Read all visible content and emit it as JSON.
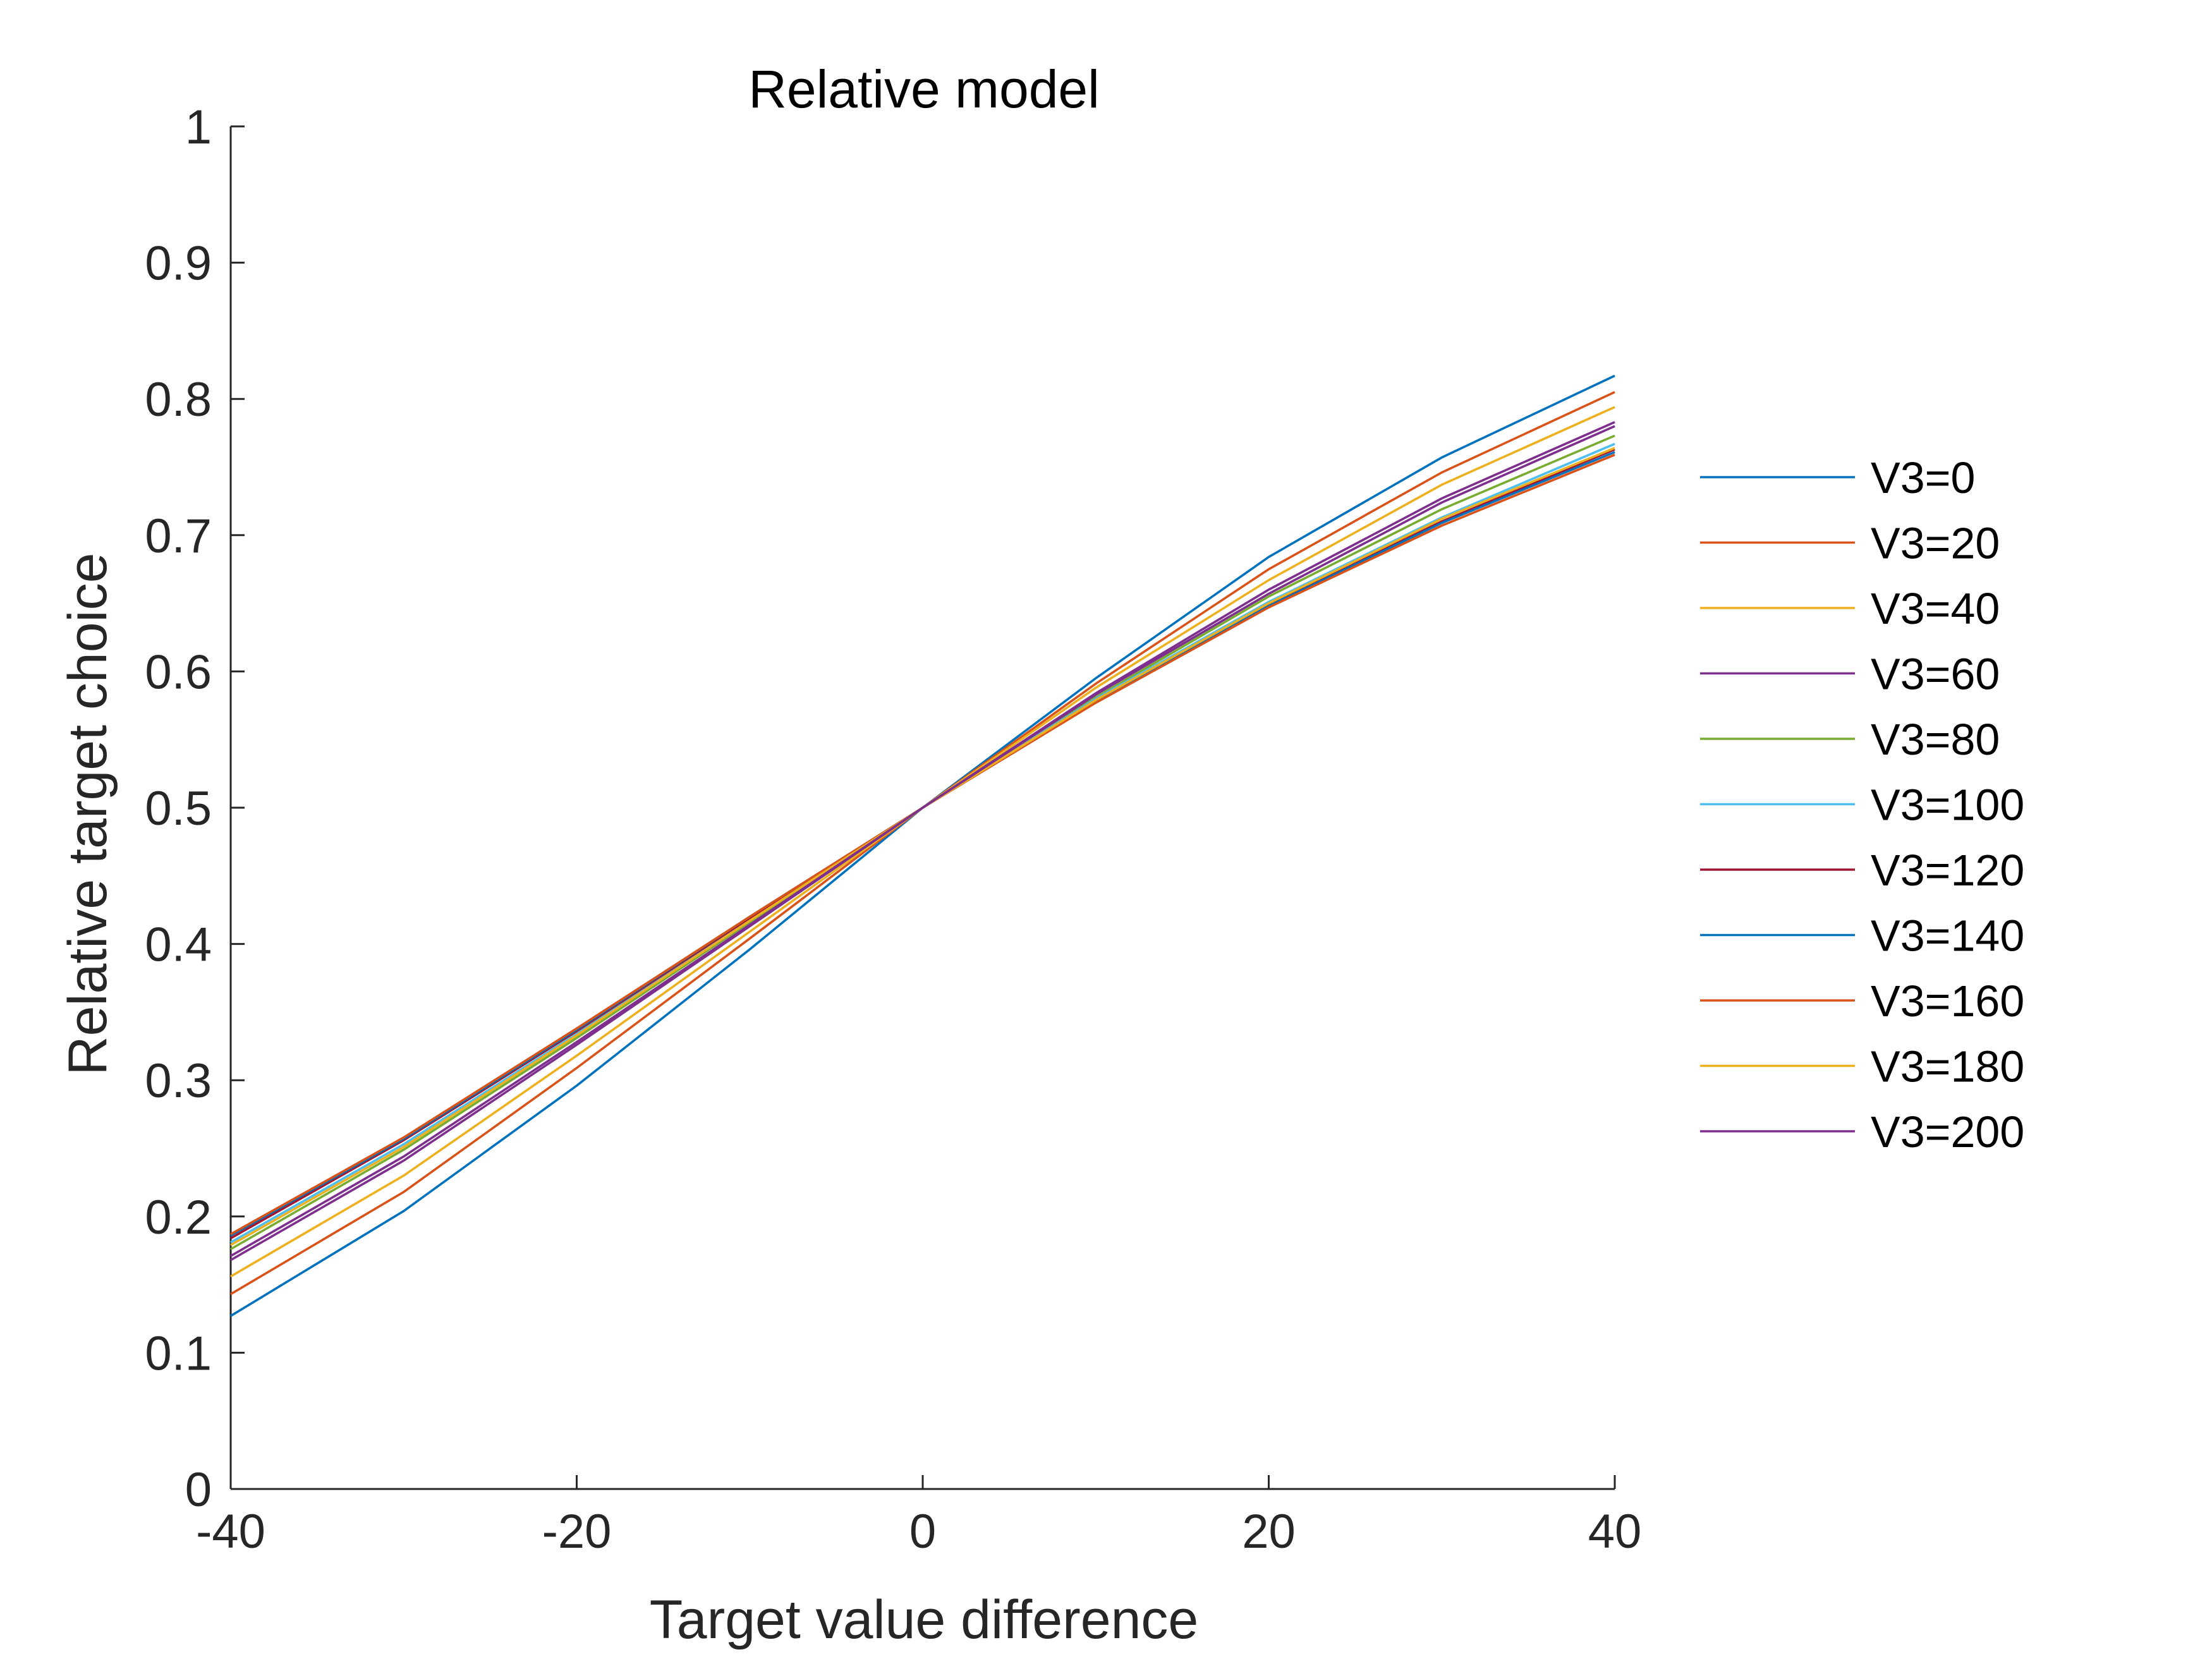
{
  "chart_data": {
    "type": "line",
    "title": "Relative model",
    "xlabel": "Target value difference",
    "ylabel": "Relative target choice",
    "xlim": [
      -40,
      40
    ],
    "ylim": [
      0,
      1
    ],
    "xticks": [
      -40,
      -20,
      0,
      20,
      40
    ],
    "xtick_labels": [
      "-40",
      "-20",
      "0",
      "20",
      "40"
    ],
    "yticks": [
      0,
      0.1,
      0.2,
      0.3,
      0.4,
      0.5,
      0.6,
      0.7,
      0.8,
      0.9,
      1
    ],
    "ytick_labels": [
      "0",
      "0.1",
      "0.2",
      "0.3",
      "0.4",
      "0.5",
      "0.6",
      "0.7",
      "0.8",
      "0.9",
      "1"
    ],
    "grid": false,
    "legend_position": "right",
    "x": [
      -40,
      -30,
      -20,
      -10,
      0,
      10,
      20,
      30,
      40
    ],
    "series": [
      {
        "name": "V3=0",
        "color": "#0072BD",
        "values": [
          0.127,
          0.204,
          0.296,
          0.396,
          0.5,
          0.595,
          0.684,
          0.757,
          0.817
        ]
      },
      {
        "name": "V3=20",
        "color": "#D95319",
        "values": [
          0.143,
          0.218,
          0.309,
          0.404,
          0.5,
          0.591,
          0.675,
          0.746,
          0.805
        ]
      },
      {
        "name": "V3=40",
        "color": "#EDB120",
        "values": [
          0.156,
          0.23,
          0.318,
          0.409,
          0.5,
          0.588,
          0.667,
          0.737,
          0.794
        ]
      },
      {
        "name": "V3=60",
        "color": "#7E2F8E",
        "values": [
          0.168,
          0.241,
          0.326,
          0.413,
          0.5,
          0.584,
          0.66,
          0.727,
          0.783
        ]
      },
      {
        "name": "V3=80",
        "color": "#77AC30",
        "values": [
          0.176,
          0.249,
          0.331,
          0.416,
          0.5,
          0.581,
          0.655,
          0.719,
          0.773
        ]
      },
      {
        "name": "V3=100",
        "color": "#4DBEEE",
        "values": [
          0.181,
          0.253,
          0.334,
          0.418,
          0.5,
          0.58,
          0.651,
          0.713,
          0.767
        ]
      },
      {
        "name": "V3=120",
        "color": "#A2142F",
        "values": [
          0.184,
          0.256,
          0.336,
          0.419,
          0.5,
          0.579,
          0.649,
          0.71,
          0.763
        ]
      },
      {
        "name": "V3=140",
        "color": "#0072BD",
        "values": [
          0.186,
          0.257,
          0.337,
          0.42,
          0.5,
          0.578,
          0.648,
          0.709,
          0.761
        ]
      },
      {
        "name": "V3=160",
        "color": "#D95319",
        "values": [
          0.187,
          0.258,
          0.338,
          0.42,
          0.5,
          0.577,
          0.647,
          0.707,
          0.759
        ]
      },
      {
        "name": "V3=180",
        "color": "#EDB120",
        "values": [
          0.179,
          0.251,
          0.333,
          0.417,
          0.5,
          0.579,
          0.65,
          0.712,
          0.764
        ]
      },
      {
        "name": "V3=200",
        "color": "#7E2F8E",
        "values": [
          0.171,
          0.244,
          0.328,
          0.414,
          0.5,
          0.583,
          0.657,
          0.724,
          0.78
        ]
      }
    ]
  }
}
